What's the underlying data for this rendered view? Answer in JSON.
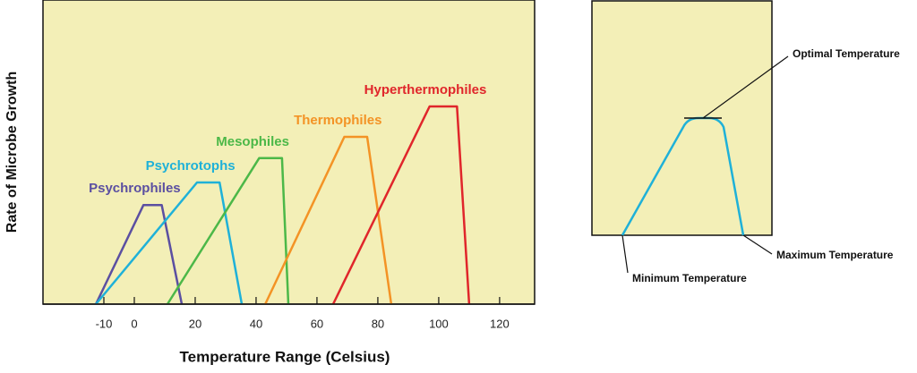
{
  "chart_data": {
    "type": "line",
    "y_label": "Rate of Microbe Growth",
    "x_label": "Temperature Range (Celsius)",
    "xlim": [
      -30,
      131.5
    ],
    "ylim": [
      0,
      100
    ],
    "xticks": [
      -10,
      0,
      20,
      40,
      60,
      80,
      100,
      120
    ],
    "series": [
      {
        "name": "Psychrophiles",
        "color": "#5b4fa1",
        "x": [
          -12.6,
          3,
          9,
          15.6
        ],
        "values": [
          0,
          32.6,
          32.6,
          0
        ]
      },
      {
        "name": "Psychrotophs",
        "color": "#1fb1d8",
        "x": [
          -12.6,
          20.6,
          28,
          35.3
        ],
        "values": [
          0,
          40,
          40,
          0
        ]
      },
      {
        "name": "Mesophiles",
        "color": "#4cb848",
        "x": [
          10.9,
          41,
          48.5,
          50.6
        ],
        "values": [
          0,
          48,
          48,
          0
        ]
      },
      {
        "name": "Thermophiles",
        "color": "#f39325",
        "x": [
          43,
          69,
          76.5,
          84.4
        ],
        "values": [
          0,
          55,
          55,
          0
        ]
      },
      {
        "name": "Hyperthermophiles",
        "color": "#e0262b",
        "x": [
          65.3,
          97,
          106,
          110
        ],
        "values": [
          0,
          65,
          65,
          0
        ]
      }
    ]
  },
  "inset": {
    "optimal": "Optimal Temperature",
    "maximum": "Maximum Temperature",
    "minimum": "Minimum Temperature"
  }
}
